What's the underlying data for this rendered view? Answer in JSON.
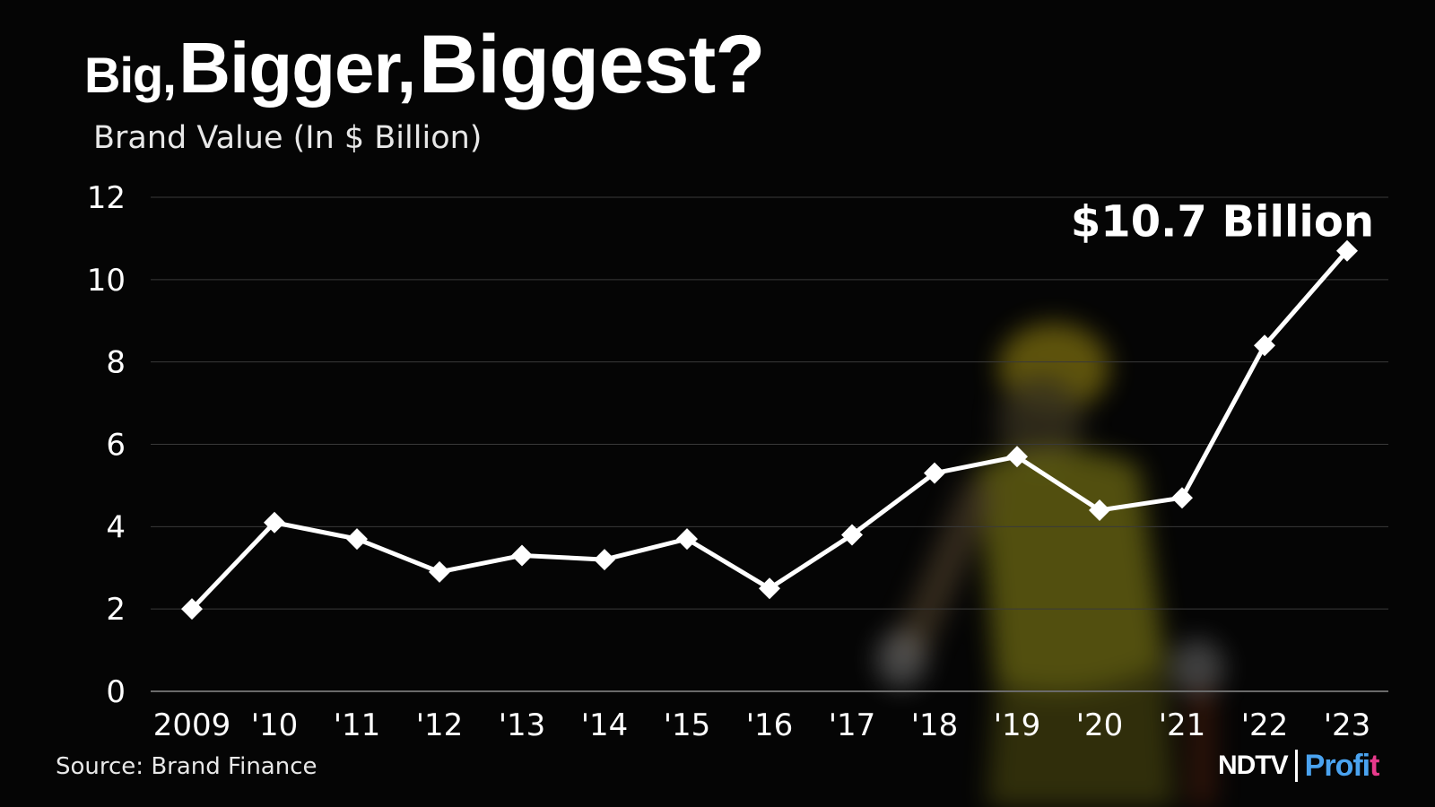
{
  "header": {
    "title_part1": "Big,",
    "title_part2": "Bigger,",
    "title_part3": "Biggest?",
    "subtitle": "Brand Value (In $ Billion)"
  },
  "footer": {
    "source": "Source: Brand Finance",
    "logo_ndtv": "NDTV",
    "logo_profit_main": "Profi",
    "logo_profit_end": "t"
  },
  "colors": {
    "background": "#050505",
    "line": "#ffffff",
    "gridline": "#3a3a3a",
    "logo_profit": "#4aa3f0",
    "logo_accent": "#e83a8c"
  },
  "chart_data": {
    "type": "line",
    "title": "Big, Bigger, Biggest?",
    "subtitle": "Brand Value (In $ Billion)",
    "xlabel": "",
    "ylabel": "",
    "categories": [
      "2009",
      "'10",
      "'11",
      "'12",
      "'13",
      "'14",
      "'15",
      "'16",
      "'17",
      "'18",
      "'19",
      "'20",
      "'21",
      "'22",
      "'23"
    ],
    "values": [
      2.0,
      4.1,
      3.7,
      2.9,
      3.3,
      3.2,
      3.7,
      2.5,
      3.8,
      5.3,
      5.7,
      4.4,
      4.7,
      8.4,
      10.7
    ],
    "ylim": [
      0,
      12
    ],
    "yticks": [
      0,
      2,
      4,
      6,
      8,
      10,
      12
    ],
    "grid": "horizontal",
    "marker": "diamond",
    "annotation": {
      "text": "$10.7 Billion",
      "category": "'23"
    }
  }
}
